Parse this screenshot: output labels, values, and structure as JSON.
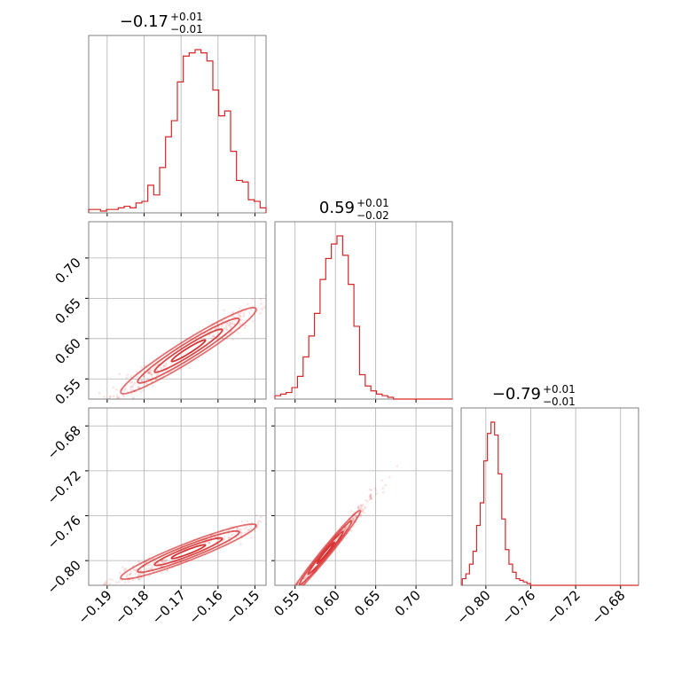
{
  "chart_data": {
    "type": "corner",
    "color": "#d62728",
    "grid": true,
    "params": [
      {
        "title_main": "−0.17",
        "title_plus": "+0.01",
        "title_minus": "−0.01",
        "range": [
          -0.195,
          -0.147
        ],
        "ticks": [
          -0.19,
          -0.18,
          -0.17,
          -0.16,
          -0.15
        ],
        "tick_labels": [
          "−0.19",
          "−0.18",
          "−0.17",
          "−0.16",
          "−0.15"
        ],
        "hist": {
          "x": [
            -0.195,
            -0.1934,
            -0.1918,
            -0.1902,
            -0.1886,
            -0.187,
            -0.1854,
            -0.1838,
            -0.1822,
            -0.1806,
            -0.179,
            -0.1774,
            -0.1758,
            -0.1742,
            -0.1726,
            -0.171,
            -0.1694,
            -0.1678,
            -0.1662,
            -0.1646,
            -0.163,
            -0.1614,
            -0.1598,
            -0.1582,
            -0.1566,
            -0.155,
            -0.1534,
            -0.1518,
            -0.1502,
            -0.1486
          ],
          "density": [
            0.01,
            0.01,
            0.0,
            0.01,
            0.01,
            0.02,
            0.03,
            0.02,
            0.05,
            0.06,
            0.16,
            0.1,
            0.27,
            0.46,
            0.56,
            0.8,
            0.96,
            0.98,
            1.0,
            0.98,
            0.93,
            0.75,
            0.59,
            0.62,
            0.37,
            0.19,
            0.18,
            0.07,
            0.06,
            0.02
          ]
        }
      },
      {
        "title_main": "0.59",
        "title_plus": "+0.01",
        "title_minus": "−0.02",
        "range": [
          0.525,
          0.745
        ],
        "ticks": [
          0.55,
          0.6,
          0.65,
          0.7
        ],
        "tick_labels": [
          "0.55",
          "0.60",
          "0.65",
          "0.70"
        ],
        "hist": {
          "x": [
            0.525,
            0.532,
            0.539,
            0.546,
            0.553,
            0.56,
            0.567,
            0.574,
            0.581,
            0.588,
            0.595,
            0.602,
            0.609,
            0.616,
            0.623,
            0.63,
            0.637,
            0.644,
            0.651,
            0.658,
            0.665
          ],
          "density": [
            0.01,
            0.02,
            0.03,
            0.06,
            0.13,
            0.25,
            0.38,
            0.52,
            0.73,
            0.86,
            0.95,
            1.0,
            0.88,
            0.7,
            0.44,
            0.14,
            0.07,
            0.04,
            0.02,
            0.01,
            0.0
          ]
        }
      },
      {
        "title_main": "−0.79",
        "title_plus": "+0.01",
        "title_minus": "−0.01",
        "range": [
          -0.822,
          -0.664
        ],
        "ticks": [
          -0.8,
          -0.76,
          -0.72,
          -0.68
        ],
        "tick_labels": [
          "−0.80",
          "−0.76",
          "−0.72",
          "−0.68"
        ],
        "hist": {
          "x": [
            -0.821,
            -0.8178,
            -0.8146,
            -0.8114,
            -0.8082,
            -0.805,
            -0.8018,
            -0.7986,
            -0.7954,
            -0.7922,
            -0.789,
            -0.7858,
            -0.7826,
            -0.7794,
            -0.7762,
            -0.773,
            -0.7698,
            -0.7666,
            -0.7634
          ],
          "density": [
            0.03,
            0.06,
            0.12,
            0.2,
            0.36,
            0.5,
            0.76,
            0.93,
            1.0,
            0.92,
            0.68,
            0.4,
            0.21,
            0.12,
            0.07,
            0.03,
            0.02,
            0.01,
            0.0
          ]
        }
      }
    ],
    "pairs": [
      {
        "x_param": 0,
        "y_param": 1,
        "centroid": [
          -0.168,
          0.585
        ],
        "major_axis": [
          0.0089,
          0.0267
        ],
        "minor_axis": [
          -0.0022,
          0.0012
        ],
        "contour_levels": [
          0.5,
          1.0,
          1.5,
          2.0
        ]
      },
      {
        "x_param": 0,
        "y_param": 2,
        "centroid": [
          -0.168,
          -0.792
        ],
        "major_axis": [
          0.0089,
          0.0122
        ],
        "minor_axis": [
          -0.0022,
          0.0012
        ],
        "contour_levels": [
          0.5,
          1.0,
          1.5,
          2.0
        ]
      },
      {
        "x_param": 1,
        "y_param": 2,
        "centroid": [
          0.588,
          -0.793
        ],
        "major_axis": [
          0.0215,
          0.0188
        ],
        "minor_axis": [
          -0.0016,
          0.0018
        ],
        "contour_levels": [
          0.5,
          1.0,
          1.5,
          2.0
        ]
      }
    ]
  }
}
